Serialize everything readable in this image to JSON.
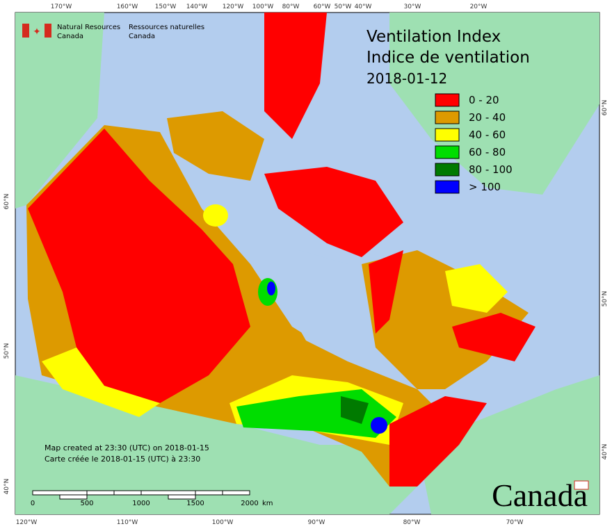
{
  "header": {
    "agency_en": [
      "Natural Resources",
      "Canada"
    ],
    "agency_fr": [
      "Ressources naturelles",
      "Canada"
    ]
  },
  "title": [
    "Ventilation Index",
    "Indice de ventilation",
    "2018-01-12"
  ],
  "legend": [
    {
      "label": "0 - 20",
      "color": "#ff0000"
    },
    {
      "label": "20 - 40",
      "color": "#dd9a00"
    },
    {
      "label": "40 - 60",
      "color": "#ffff00"
    },
    {
      "label": "60 - 80",
      "color": "#00dd00"
    },
    {
      "label": "80 - 100",
      "color": "#007a00"
    },
    {
      "label": "> 100",
      "color": "#0000ff"
    }
  ],
  "graticule": {
    "top": [
      "170°W",
      "160°W",
      "150°W",
      "140°W",
      "120°W",
      "100°W",
      "80°W",
      "60°W",
      "50°W",
      "40°W",
      "30°W",
      "20°W"
    ],
    "bottom": [
      "120°W",
      "110°W",
      "100°W",
      "90°W",
      "80°W",
      "70°W"
    ],
    "left": [
      "60°N",
      "50°N",
      "40°N"
    ],
    "right": [
      "60°N",
      "50°N",
      "40°N"
    ]
  },
  "notes": [
    "Map created at 23:30 (UTC) on 2018-01-15",
    "Carte créée le 2018-01-15 (UTC) à 23:30"
  ],
  "scale": {
    "labels": [
      "0",
      "500",
      "1000",
      "1500",
      "2000"
    ],
    "unit": "km"
  },
  "wordmark": "Canada"
}
